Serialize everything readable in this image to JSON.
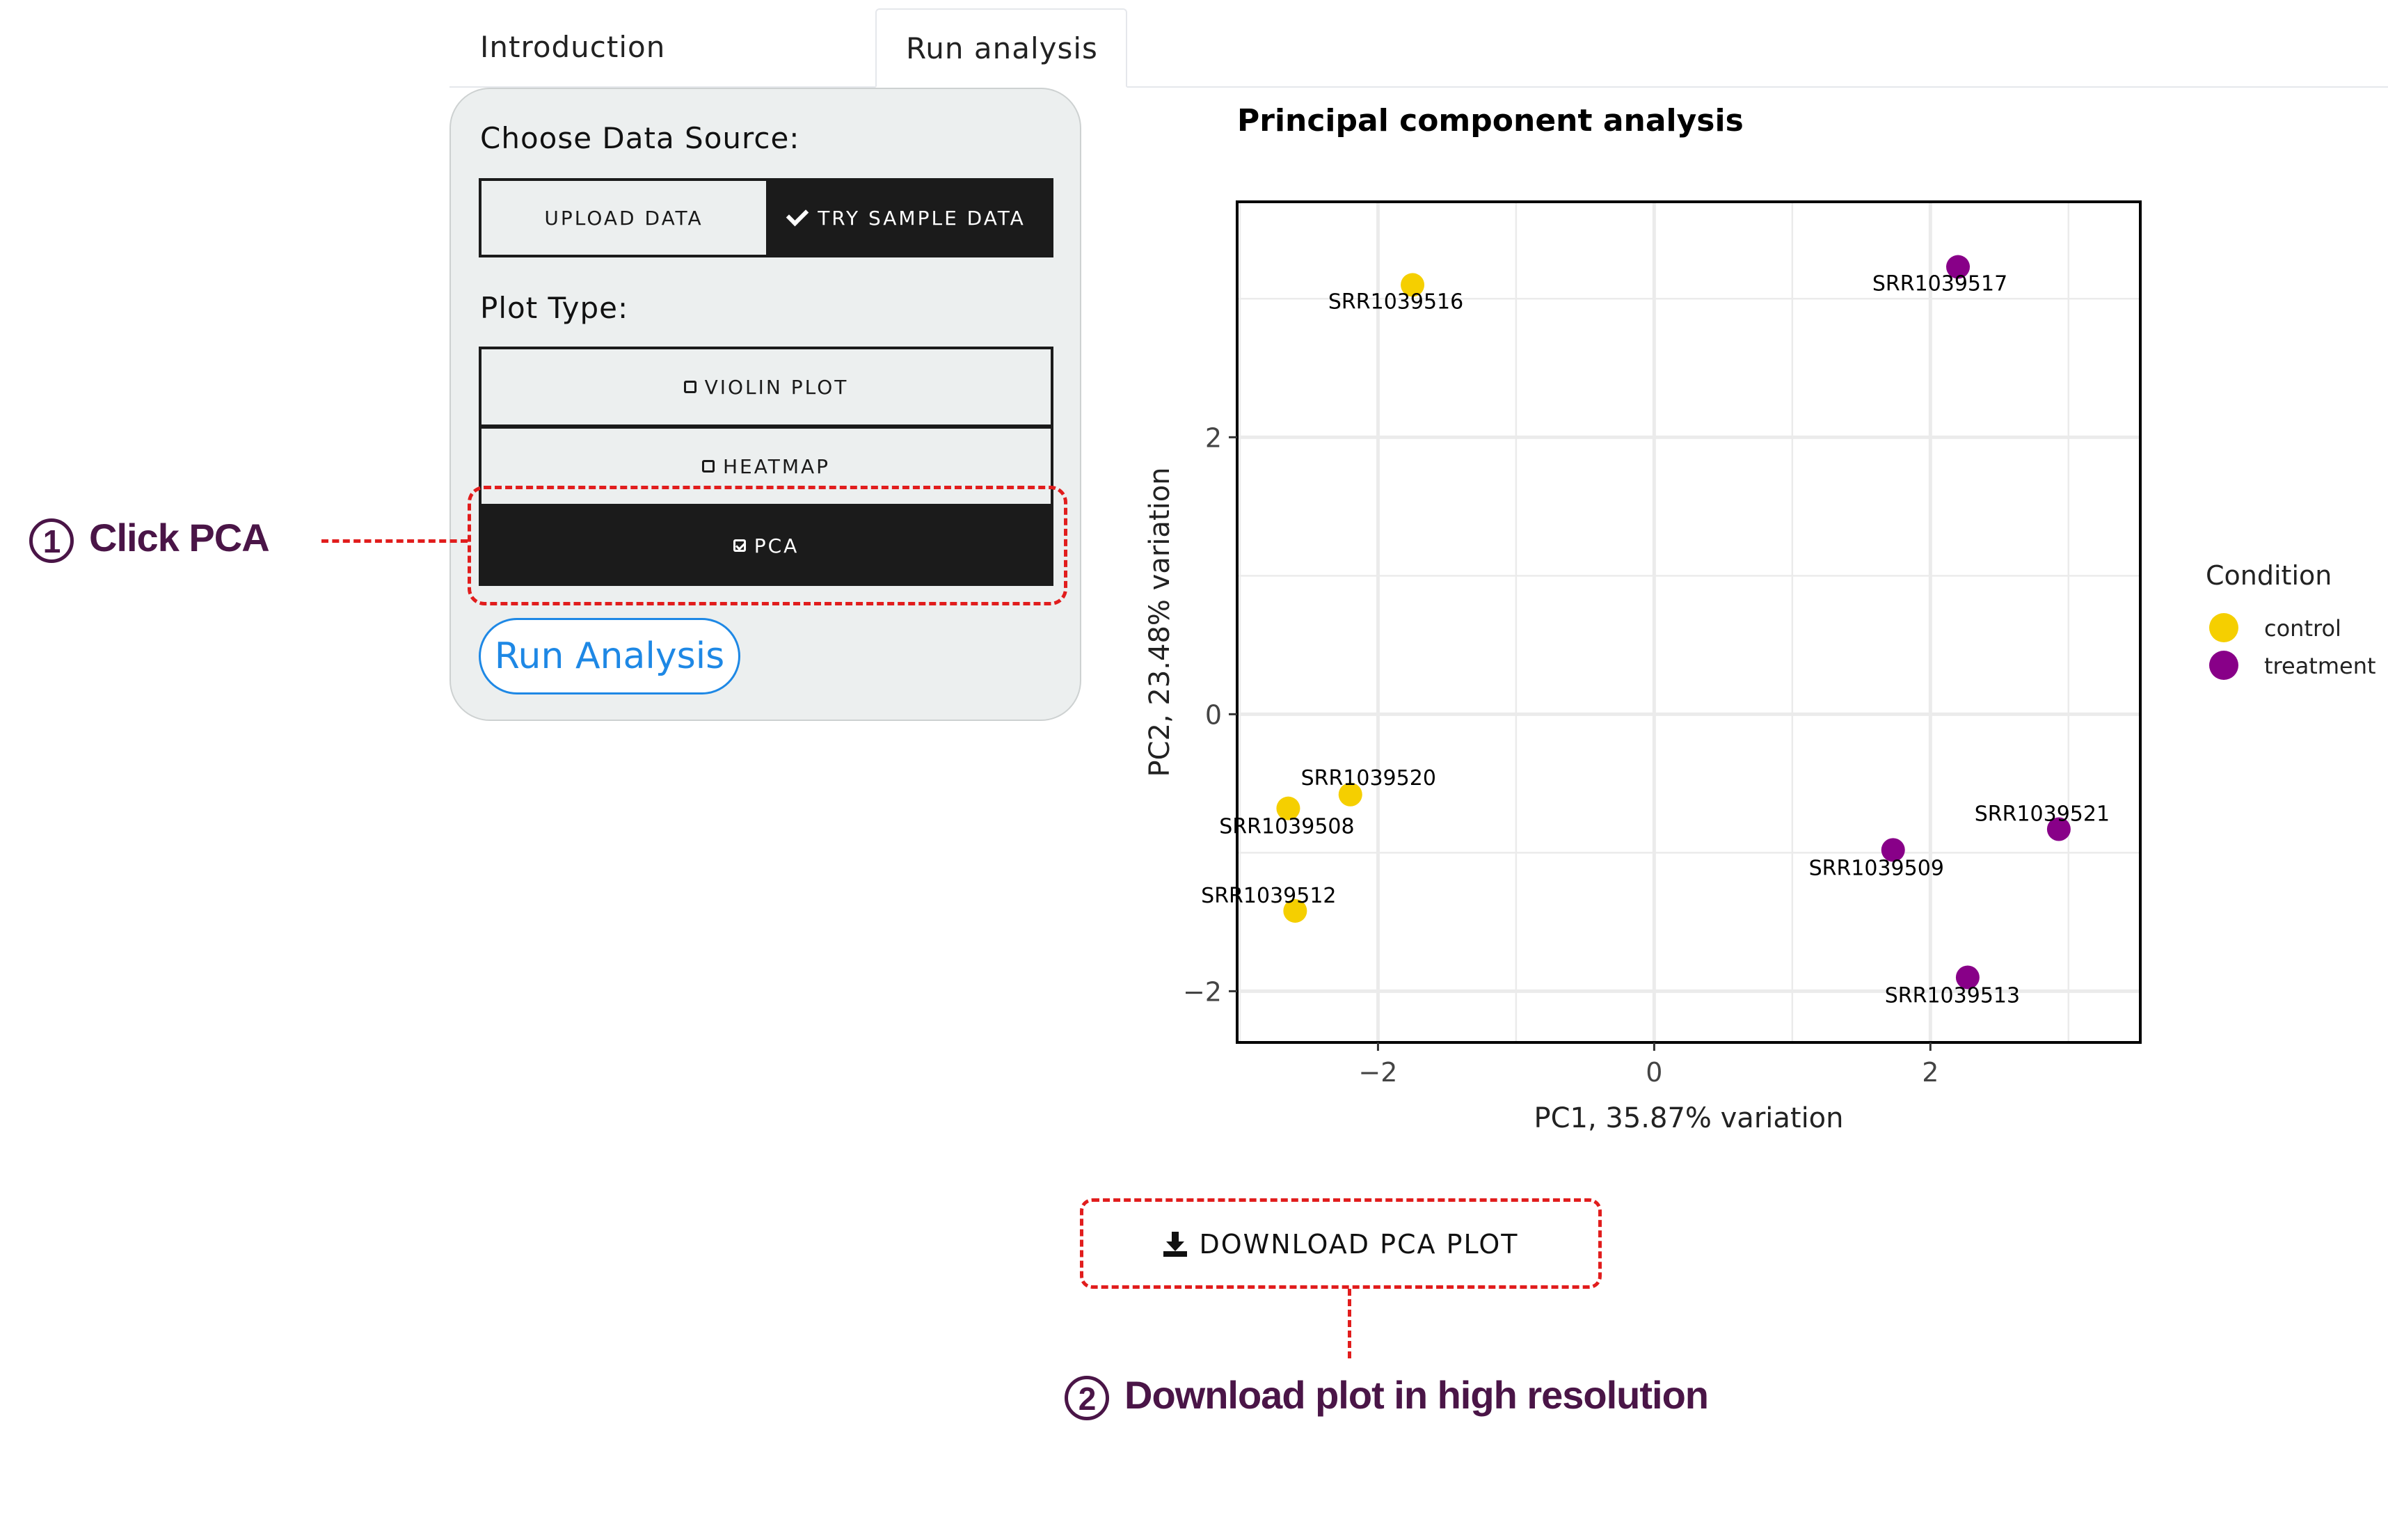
{
  "tabs": [
    "Introduction",
    "Run analysis"
  ],
  "panel": {
    "data_source_label": "Choose Data Source:",
    "data_source_options": [
      "UPLOAD DATA",
      "TRY SAMPLE DATA"
    ],
    "plot_type_label": "Plot Type:",
    "plot_types": [
      "VIOLIN PLOT",
      "HEATMAP",
      "PCA"
    ],
    "run_button": "Run Analysis"
  },
  "annotations": {
    "step1_number": "1",
    "step1_text": "Click PCA",
    "step2_number": "2",
    "step2_text": "Download plot in high resolution"
  },
  "download_button": "DOWNLOAD PCA PLOT",
  "chart_data": {
    "type": "scatter",
    "title": "Principal component analysis",
    "xlabel": "PC1, 35.87% variation",
    "ylabel": "PC2, 23.48% variation",
    "xlim": [
      -3.02,
      3.52
    ],
    "ylim": [
      -2.37,
      3.7
    ],
    "xticks": [
      -2,
      0,
      2
    ],
    "yticks": [
      -2,
      0,
      2
    ],
    "grid": true,
    "legend": {
      "title": "Condition",
      "placement": "right"
    },
    "series": [
      {
        "name": "control",
        "color": "#F5CF00",
        "points": [
          {
            "label": "SRR1039516",
            "x": -1.75,
            "y": 3.1
          },
          {
            "label": "SRR1039520",
            "x": -2.2,
            "y": -0.58
          },
          {
            "label": "SRR1039508",
            "x": -2.65,
            "y": -0.68
          },
          {
            "label": "SRR1039512",
            "x": -2.6,
            "y": -1.42
          }
        ]
      },
      {
        "name": "treatment",
        "color": "#880088",
        "points": [
          {
            "label": "SRR1039517",
            "x": 2.2,
            "y": 3.23
          },
          {
            "label": "SRR1039521",
            "x": 2.93,
            "y": -0.83
          },
          {
            "label": "SRR1039509",
            "x": 1.73,
            "y": -0.98
          },
          {
            "label": "SRR1039513",
            "x": 2.27,
            "y": -1.9
          }
        ]
      }
    ]
  }
}
